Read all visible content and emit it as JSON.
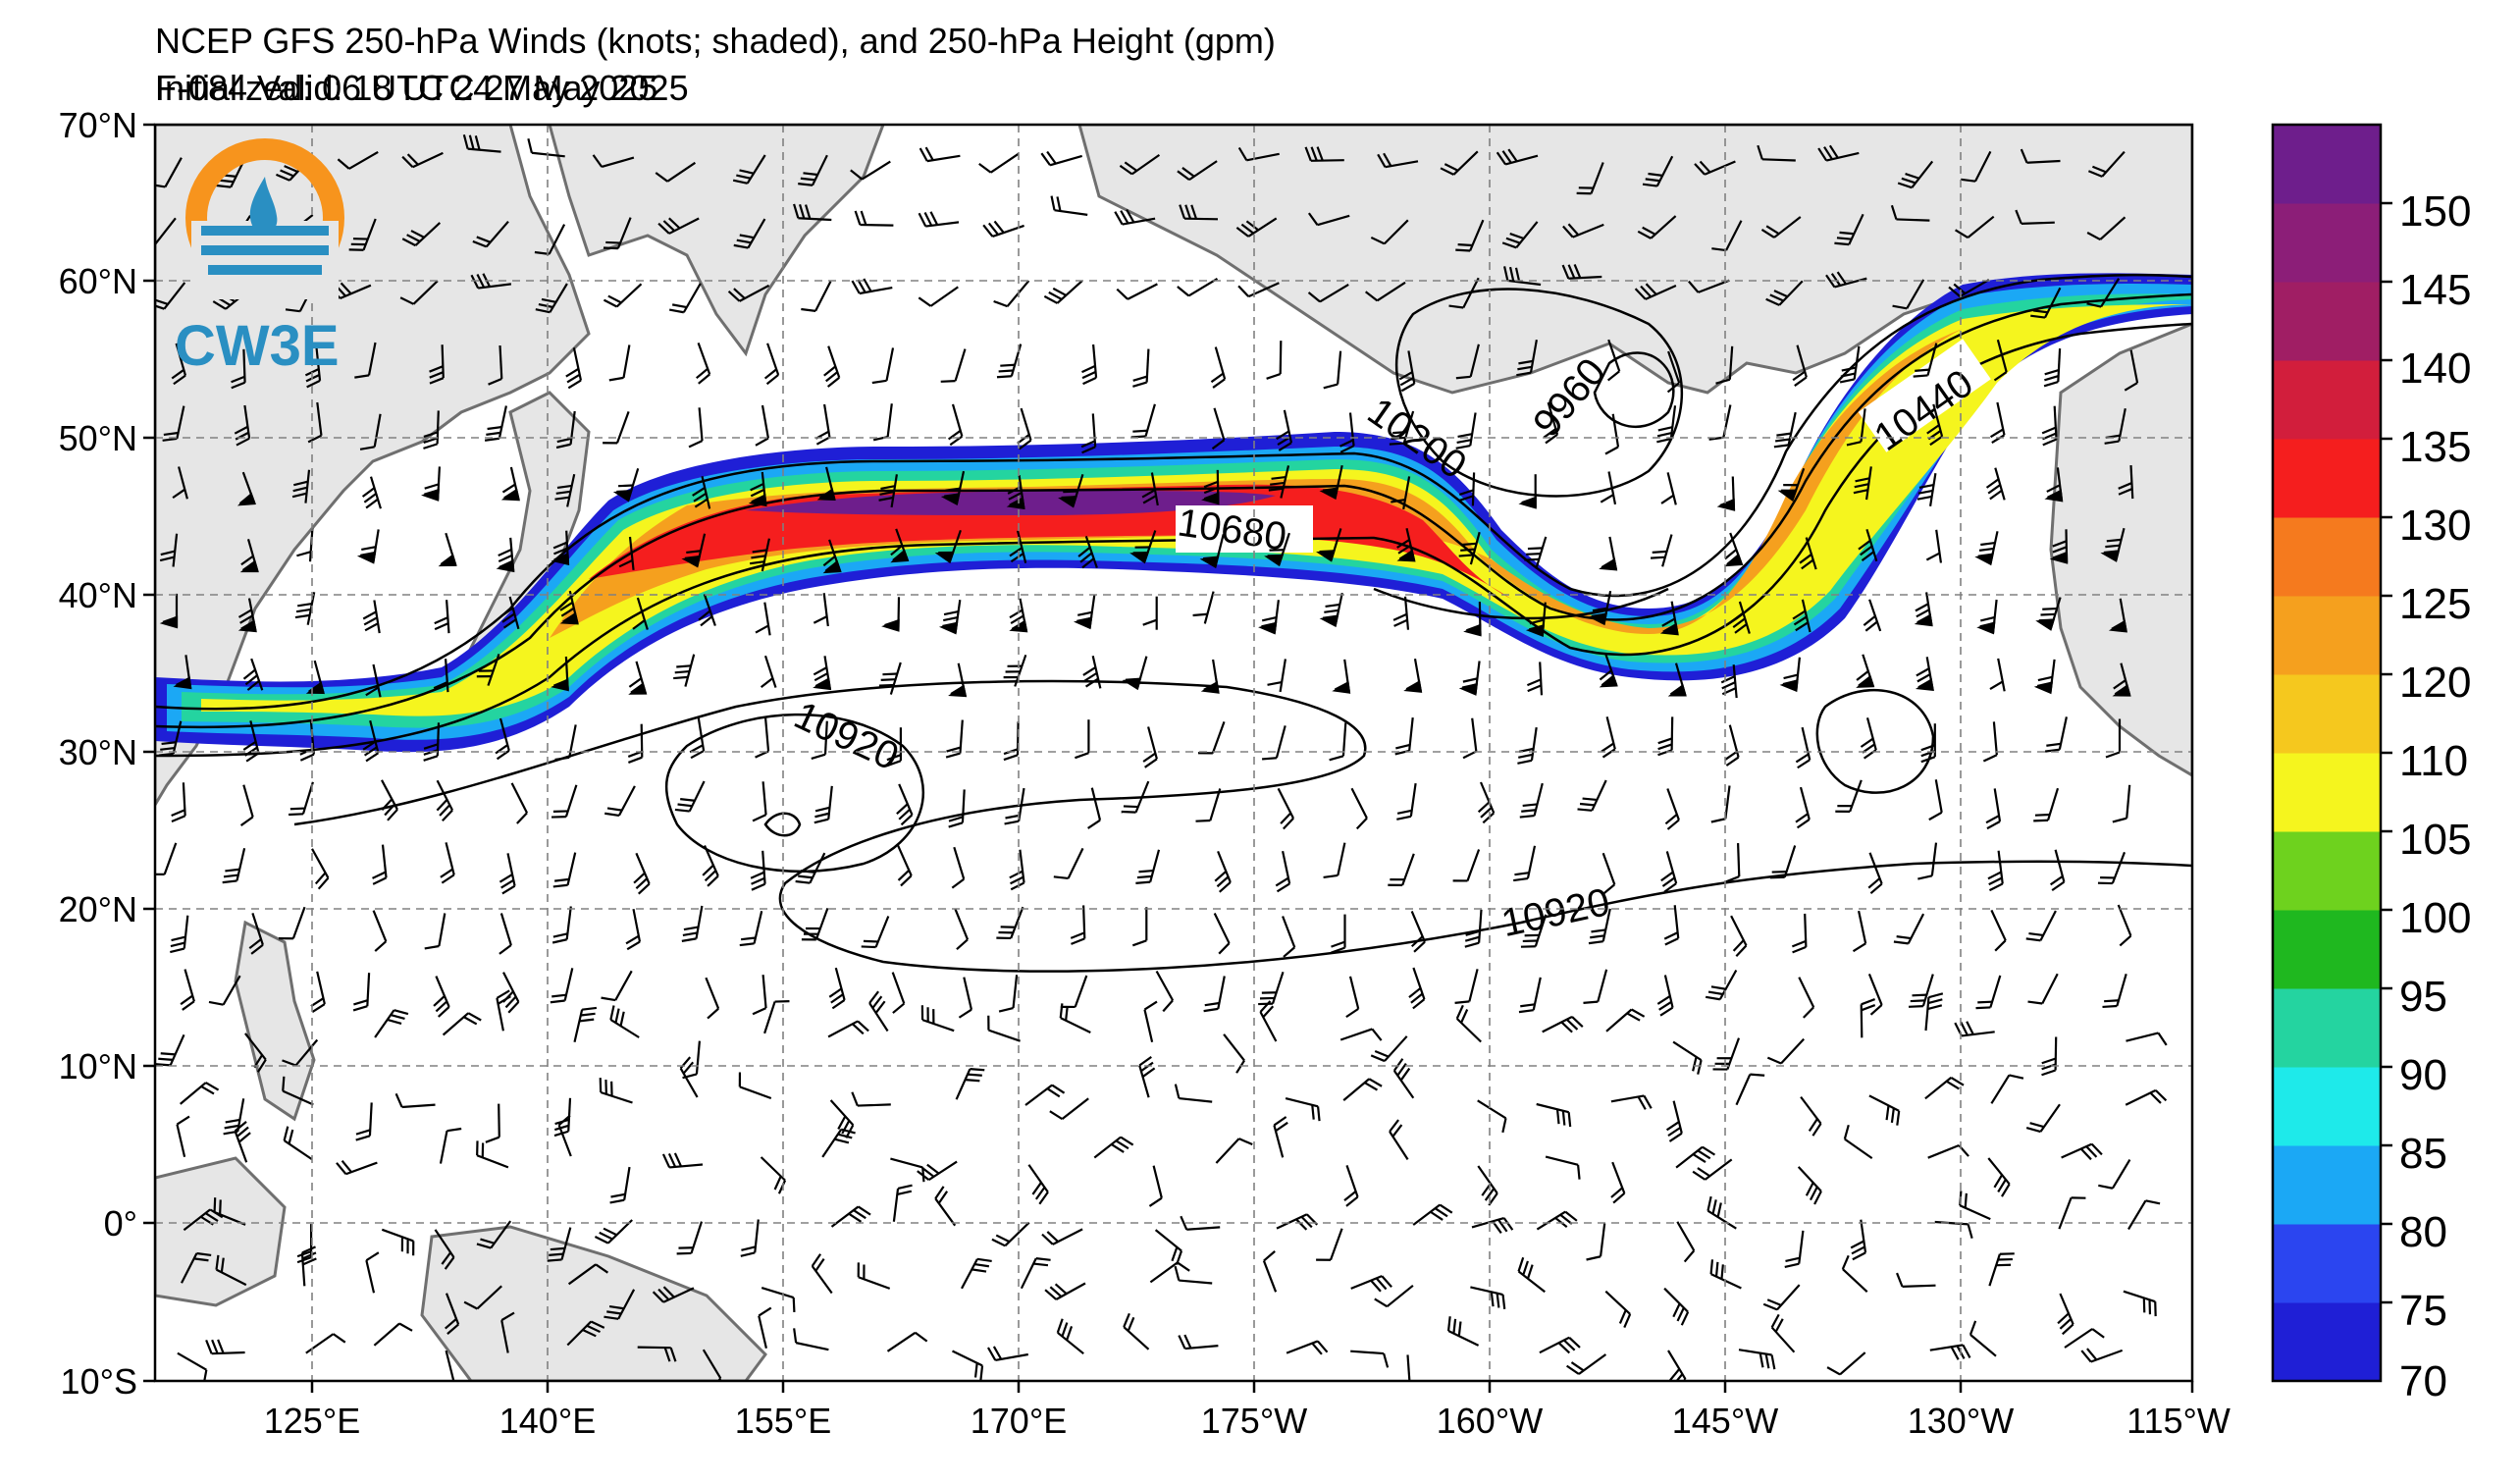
{
  "header": {
    "title": "NCEP GFS 250-hPa Winds (knots; shaded), and 250-hPa Height (gpm)",
    "initialized": "Initialized: 06 UTC 24 May 2025",
    "valid": "F-084  Valid: 18 UTC 27 May 2025"
  },
  "logo": {
    "text": "CW3E",
    "color": "#2a8fc2",
    "accent": "#f7941d"
  },
  "map": {
    "lat_labels": [
      "70°N",
      "60°N",
      "50°N",
      "40°N",
      "30°N",
      "20°N",
      "10°N",
      "0°",
      "10°S"
    ],
    "lon_labels": [
      "125°E",
      "140°E",
      "155°E",
      "170°E",
      "175°W",
      "160°W",
      "145°W",
      "130°W",
      "115°W"
    ],
    "contour_labels": [
      "10920",
      "10680",
      "10200",
      "9960",
      "10440",
      "10920"
    ],
    "land_color": "#e6e6e6",
    "coast_color": "#6f6f6f"
  },
  "colorbar": {
    "labels": [
      "150",
      "145",
      "140",
      "135",
      "130",
      "125",
      "120",
      "110",
      "105",
      "100",
      "95",
      "90",
      "85",
      "80",
      "75",
      "70"
    ],
    "levels": [
      70,
      75,
      80,
      85,
      90,
      95,
      100,
      105,
      110,
      120,
      125,
      130,
      135,
      140,
      145,
      150,
      155
    ],
    "colors": [
      "#1f1fd6",
      "#2b45f0",
      "#1ba8f5",
      "#1eeaea",
      "#24d4a0",
      "#1fb81f",
      "#6ed21e",
      "#f5f51e",
      "#f5c81e",
      "#f5a01e",
      "#f57a1e",
      "#f51e1e",
      "#d21e3c",
      "#a01e64",
      "#8c1e78",
      "#6e1e8c"
    ]
  }
}
